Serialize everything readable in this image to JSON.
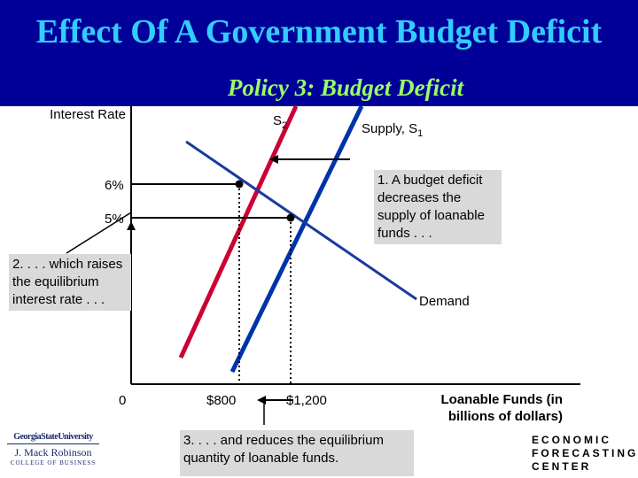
{
  "slide": {
    "title": "Effect Of A Government Budget Deficit",
    "subtitle": "Policy 3: Budget Deficit"
  },
  "chart_data": {
    "type": "line",
    "ylabel": "Interest Rate",
    "xlabel": "Loanable Funds (in billions of dollars)",
    "y_ticks": [
      "6%",
      "5%"
    ],
    "x_ticks": [
      "0",
      "$800",
      "$1,200"
    ],
    "series": [
      {
        "name": "S2",
        "label_main": "S",
        "label_sub": "2",
        "color": "#cc0033"
      },
      {
        "name": "Supply, S1",
        "label_main": "Supply, S",
        "label_sub": "1",
        "color": "#0033aa"
      },
      {
        "name": "Demand",
        "label_main": "Demand",
        "label_sub": "",
        "color": "#1a3a9e"
      }
    ],
    "equilibria": [
      {
        "rate": 6,
        "quantity": 800
      },
      {
        "rate": 5,
        "quantity": 1200
      }
    ],
    "annotations": {
      "step1": "1. A budget deficit decreases the supply of loanable funds . . .",
      "step2": "2. . . . which raises the equilibrium interest rate . . .",
      "step3": "3. . . . and reduces the equilibrium quantity of loanable funds."
    }
  },
  "footer": {
    "gsu_line1": "GeorgiaStateUniversity",
    "gsu_line2": "J. Mack Robinson",
    "gsu_line3": "COLLEGE OF BUSINESS",
    "efc_line1": "ECONOMIC",
    "efc_line2": "FORECASTING",
    "efc_line3": "CENTER"
  }
}
